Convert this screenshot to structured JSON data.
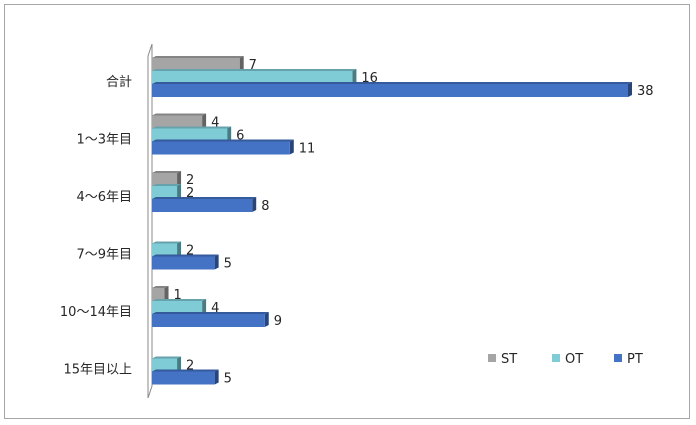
{
  "chart_data": {
    "type": "bar",
    "orientation": "horizontal",
    "style": "3d",
    "categories": [
      "合計",
      "1〜3年目",
      "4〜6年目",
      "7〜9年目",
      "10〜14年目",
      "15年目以上"
    ],
    "series": [
      {
        "name": "ST",
        "color": "#a5a5a5",
        "values": [
          7,
          4,
          2,
          null,
          1,
          null
        ]
      },
      {
        "name": "OT",
        "color": "#7fcbd6",
        "values": [
          16,
          6,
          2,
          2,
          4,
          2
        ]
      },
      {
        "name": "PT",
        "color": "#4472c4",
        "values": [
          38,
          11,
          8,
          5,
          9,
          5
        ]
      }
    ],
    "xlim": [
      0,
      38
    ],
    "grid": false,
    "legend": "bottom-right"
  }
}
